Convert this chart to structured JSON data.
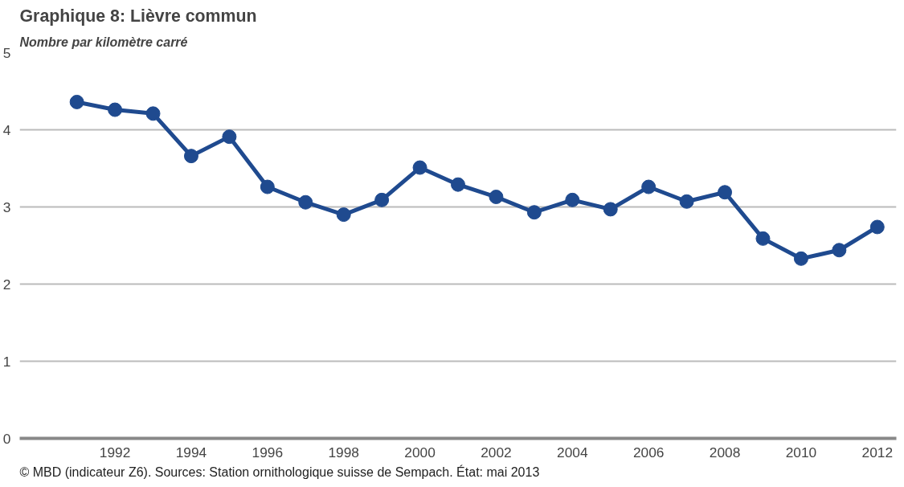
{
  "chart_data": {
    "type": "line",
    "title": "Graphique 8: Lièvre commun",
    "ylabel": "Nombre par kilomètre carré",
    "x": [
      1991,
      1992,
      1993,
      1994,
      1995,
      1996,
      1997,
      1998,
      1999,
      2000,
      2001,
      2002,
      2003,
      2004,
      2005,
      2006,
      2007,
      2008,
      2009,
      2010,
      2011,
      2012
    ],
    "series": [
      {
        "color": "#1f4a8f",
        "values": [
          4.36,
          4.26,
          4.21,
          3.66,
          3.91,
          3.26,
          3.06,
          2.9,
          3.09,
          3.51,
          3.29,
          3.13,
          2.93,
          3.09,
          2.97,
          3.26,
          3.07,
          3.19,
          2.59,
          2.33,
          2.44,
          2.74
        ]
      }
    ],
    "xlim": [
      1989.5,
      2012.5
    ],
    "xticks": [
      1992,
      1994,
      1996,
      1998,
      2000,
      2002,
      2004,
      2006,
      2008,
      2010,
      2012
    ],
    "ylim": [
      0,
      5
    ],
    "yticks": [
      0,
      1,
      2,
      3,
      4,
      5
    ],
    "grid": "y",
    "marker": "circle",
    "line_style": "solid",
    "annotations": [
      "© MBD (indicateur Z6). Sources: Station ornithologique suisse de Sempach. État: mai 2013"
    ]
  }
}
